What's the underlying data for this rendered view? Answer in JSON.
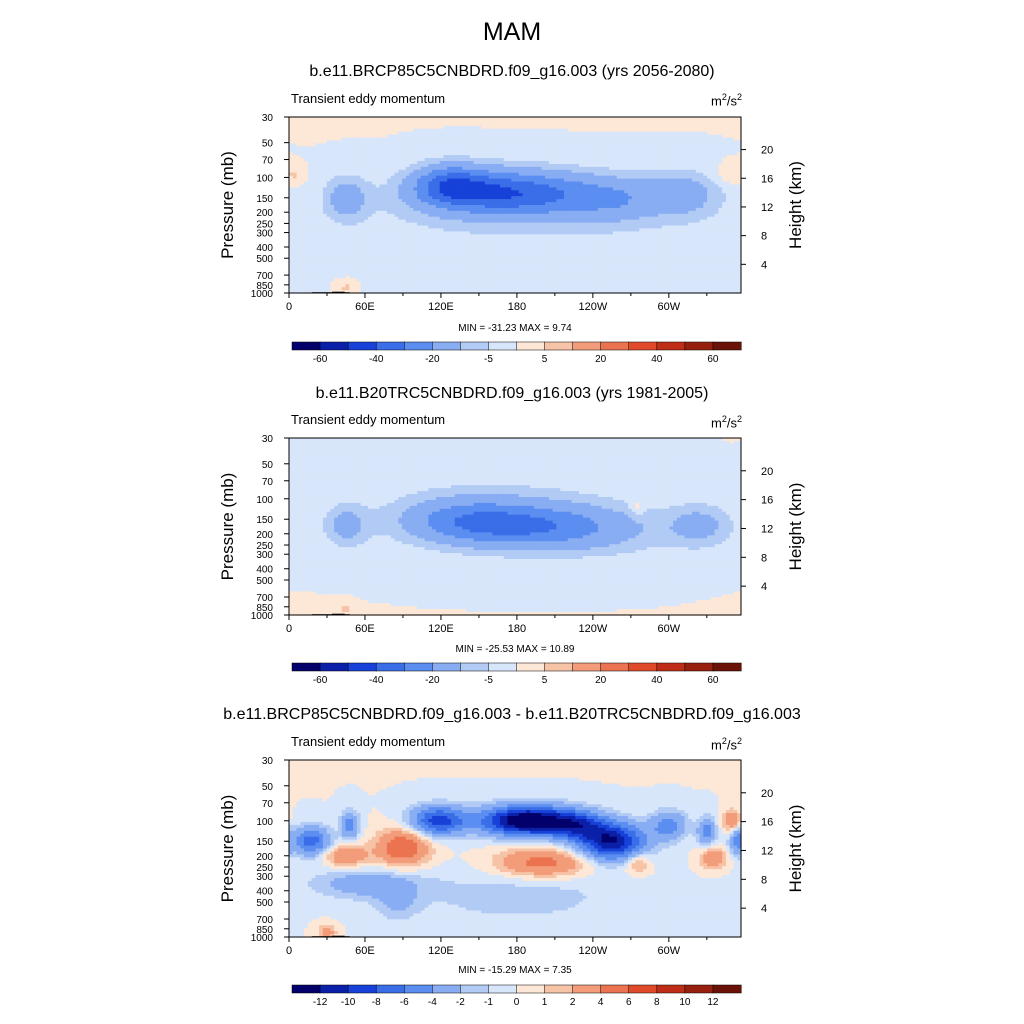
{
  "figure": {
    "title": "MAM",
    "colors": {
      "background": "#ffffff",
      "axis": "#000000",
      "topography": "#000000"
    }
  },
  "colorbars": {
    "full_field": {
      "labels": [
        "-60",
        "-40",
        "-20",
        "-5",
        "5",
        "20",
        "40",
        "60"
      ],
      "colors": [
        "#03006b",
        "#0a20a8",
        "#1741d8",
        "#3a6ee8",
        "#5b8ef0",
        "#89adf3",
        "#b1cbf5",
        "#d8e6fb",
        "#fde7d6",
        "#f7c3a7",
        "#f29c7a",
        "#ec7350",
        "#e04a2a",
        "#c02d16",
        "#96200d",
        "#6a1207"
      ]
    },
    "difference": {
      "labels": [
        "-12",
        "-10",
        "-8",
        "-6",
        "-4",
        "-2",
        "-1",
        "0",
        "1",
        "2",
        "4",
        "6",
        "8",
        "10",
        "12"
      ],
      "colors": [
        "#03006b",
        "#0a20a8",
        "#1741d8",
        "#3a6ee8",
        "#5b8ef0",
        "#89adf3",
        "#b1cbf5",
        "#d8e6fb",
        "#fde7d6",
        "#f7c3a7",
        "#f29c7a",
        "#ec7350",
        "#e04a2a",
        "#c02d16",
        "#96200d",
        "#6a1207"
      ]
    }
  },
  "panels": [
    {
      "title": "b.e11.BRCP85C5CNBDRD.f09_g16.003 (yrs 2056-2080)",
      "variable": "Transient eddy momentum",
      "units_base": "m",
      "units_exp1": "2",
      "units_mid": "/s",
      "units_exp2": "2",
      "minmax": "MIN = -31.23  MAX =   9.74",
      "ylabel_left": "Pressure (mb)",
      "ylabel_right": "Height (km)"
    },
    {
      "title": "b.e11.B20TRC5CNBDRD.f09_g16.003 (yrs 1981-2005)",
      "variable": "Transient eddy momentum",
      "units_base": "m",
      "units_exp1": "2",
      "units_mid": "/s",
      "units_exp2": "2",
      "minmax": "MIN = -25.53  MAX =  10.89",
      "ylabel_left": "Pressure (mb)",
      "ylabel_right": "Height (km)"
    },
    {
      "title": "b.e11.BRCP85C5CNBDRD.f09_g16.003 - b.e11.B20TRC5CNBDRD.f09_g16.003",
      "variable": "Transient eddy momentum",
      "units_base": "m",
      "units_exp1": "2",
      "units_mid": "/s",
      "units_exp2": "2",
      "minmax": "MIN = -15.29  MAX =   7.35",
      "ylabel_left": "Pressure (mb)",
      "ylabel_right": "Height (km)"
    }
  ],
  "chart_data": [
    {
      "type": "heatmap",
      "title": "b.e11.BRCP85C5CNBDRD.f09_g16.003 (yrs 2056-2080)",
      "variable": "Transient eddy momentum",
      "units": "m2/s2",
      "xlabel": "",
      "ylabel": "Pressure (mb)",
      "ylabel_right": "Height (km)",
      "x_ticks": [
        "0",
        "60E",
        "120E",
        "180",
        "120W",
        "60W"
      ],
      "x_tick_values": [
        0,
        60,
        120,
        180,
        240,
        300
      ],
      "xlim": [
        0,
        357
      ],
      "y_ticks": [
        30,
        50,
        70,
        100,
        150,
        200,
        250,
        300,
        400,
        500,
        700,
        850,
        1000
      ],
      "ylim": [
        1000,
        30
      ],
      "y_scale": "log",
      "height_ticks_km": [
        4,
        8,
        12,
        16,
        20
      ],
      "min": -31.23,
      "max": 9.74,
      "contour_levels": [
        -70,
        -60,
        -50,
        -40,
        -30,
        -20,
        -10,
        -5,
        0,
        5,
        10,
        20,
        30,
        40,
        50,
        60,
        70
      ],
      "features": [
        {
          "lon": 188,
          "p": 140,
          "value": -30,
          "sx": 55,
          "sy": 0.32
        },
        {
          "lon": 126,
          "p": 115,
          "value": -25,
          "sx": 20,
          "sy": 0.28
        },
        {
          "lon": 160,
          "p": 125,
          "value": -12,
          "sx": 30,
          "sy": 0.3
        },
        {
          "lon": 45,
          "p": 150,
          "value": -14,
          "sx": 12,
          "sy": 0.3
        },
        {
          "lon": 310,
          "p": 140,
          "value": -13,
          "sx": 22,
          "sy": 0.33
        },
        {
          "lon": 258,
          "p": 165,
          "value": -8,
          "sx": 20,
          "sy": 0.3
        },
        {
          "lon": 180,
          "p": 260,
          "value": -4,
          "sx": 120,
          "sy": 0.45
        },
        {
          "lon": 350,
          "p": 95,
          "value": 6,
          "sx": 8,
          "sy": 0.15
        },
        {
          "lon": 5,
          "p": 95,
          "value": 5,
          "sx": 5,
          "sy": 0.12
        },
        {
          "lon": 45,
          "p": 900,
          "value": 6,
          "sx": 4,
          "sy": 0.08
        }
      ]
    },
    {
      "type": "heatmap",
      "title": "b.e11.B20TRC5CNBDRD.f09_g16.003 (yrs 1981-2005)",
      "variable": "Transient eddy momentum",
      "units": "m2/s2",
      "xlabel": "",
      "ylabel": "Pressure (mb)",
      "ylabel_right": "Height (km)",
      "x_ticks": [
        "0",
        "60E",
        "120E",
        "180",
        "120W",
        "60W"
      ],
      "x_tick_values": [
        0,
        60,
        120,
        180,
        240,
        300
      ],
      "xlim": [
        0,
        357
      ],
      "y_ticks": [
        30,
        50,
        70,
        100,
        150,
        200,
        250,
        300,
        400,
        500,
        700,
        850,
        1000
      ],
      "ylim": [
        1000,
        30
      ],
      "y_scale": "log",
      "height_ticks_km": [
        4,
        8,
        12,
        16,
        20
      ],
      "min": -25.53,
      "max": 10.89,
      "contour_levels": [
        -70,
        -60,
        -50,
        -40,
        -30,
        -20,
        -10,
        -5,
        0,
        5,
        10,
        20,
        30,
        40,
        50,
        60,
        70
      ],
      "features": [
        {
          "lon": 195,
          "p": 175,
          "value": -24,
          "sx": 50,
          "sy": 0.3
        },
        {
          "lon": 140,
          "p": 150,
          "value": -16,
          "sx": 35,
          "sy": 0.3
        },
        {
          "lon": 45,
          "p": 170,
          "value": -12,
          "sx": 12,
          "sy": 0.3
        },
        {
          "lon": 325,
          "p": 170,
          "value": -12,
          "sx": 18,
          "sy": 0.3
        },
        {
          "lon": 170,
          "p": 130,
          "value": -6,
          "sx": 70,
          "sy": 0.55
        },
        {
          "lon": 260,
          "p": 220,
          "value": -3,
          "sx": 40,
          "sy": 0.4
        },
        {
          "lon": 275,
          "p": 120,
          "value": 6,
          "sx": 4,
          "sy": 0.12
        },
        {
          "lon": 45,
          "p": 900,
          "value": 8,
          "sx": 4,
          "sy": 0.08
        }
      ]
    },
    {
      "type": "heatmap",
      "title": "b.e11.BRCP85C5CNBDRD.f09_g16.003 - b.e11.B20TRC5CNBDRD.f09_g16.003",
      "variable": "Transient eddy momentum",
      "units": "m2/s2",
      "xlabel": "",
      "ylabel": "Pressure (mb)",
      "ylabel_right": "Height (km)",
      "x_ticks": [
        "0",
        "60E",
        "120E",
        "180",
        "120W",
        "60W"
      ],
      "x_tick_values": [
        0,
        60,
        120,
        180,
        240,
        300
      ],
      "xlim": [
        0,
        357
      ],
      "y_ticks": [
        30,
        50,
        70,
        100,
        150,
        200,
        250,
        300,
        400,
        500,
        700,
        850,
        1000
      ],
      "ylim": [
        1000,
        30
      ],
      "y_scale": "log",
      "height_ticks_km": [
        4,
        8,
        12,
        16,
        20
      ],
      "min": -15.29,
      "max": 7.35,
      "contour_levels": [
        -14,
        -12,
        -10,
        -8,
        -6,
        -4,
        -2,
        -1,
        0,
        1,
        2,
        4,
        6,
        8,
        10,
        12,
        14
      ],
      "features": [
        {
          "lon": 188,
          "p": 100,
          "value": -15,
          "sx": 25,
          "sy": 0.2
        },
        {
          "lon": 118,
          "p": 100,
          "value": -9,
          "sx": 15,
          "sy": 0.2
        },
        {
          "lon": 255,
          "p": 150,
          "value": -12,
          "sx": 18,
          "sy": 0.25
        },
        {
          "lon": 228,
          "p": 110,
          "value": -7,
          "sx": 15,
          "sy": 0.2
        },
        {
          "lon": 18,
          "p": 150,
          "value": -7,
          "sx": 10,
          "sy": 0.2
        },
        {
          "lon": 48,
          "p": 110,
          "value": -5,
          "sx": 5,
          "sy": 0.2
        },
        {
          "lon": 300,
          "p": 110,
          "value": -5,
          "sx": 10,
          "sy": 0.2
        },
        {
          "lon": 330,
          "p": 125,
          "value": -5,
          "sx": 5,
          "sy": 0.2
        },
        {
          "lon": 355,
          "p": 150,
          "value": -5,
          "sx": 5,
          "sy": 0.2
        },
        {
          "lon": 90,
          "p": 170,
          "value": 6,
          "sx": 14,
          "sy": 0.25
        },
        {
          "lon": 200,
          "p": 230,
          "value": 5,
          "sx": 25,
          "sy": 0.2
        },
        {
          "lon": 45,
          "p": 200,
          "value": 4,
          "sx": 12,
          "sy": 0.15
        },
        {
          "lon": 335,
          "p": 210,
          "value": 4,
          "sx": 7,
          "sy": 0.15
        },
        {
          "lon": 275,
          "p": 230,
          "value": 3,
          "sx": 7,
          "sy": 0.15
        },
        {
          "lon": 350,
          "p": 100,
          "value": 4,
          "sx": 5,
          "sy": 0.15
        },
        {
          "lon": 60,
          "p": 350,
          "value": -3,
          "sx": 30,
          "sy": 0.2
        },
        {
          "lon": 85,
          "p": 500,
          "value": -2,
          "sx": 12,
          "sy": 0.25
        },
        {
          "lon": 180,
          "p": 450,
          "value": -1.5,
          "sx": 60,
          "sy": 0.4
        },
        {
          "lon": 30,
          "p": 900,
          "value": 3,
          "sx": 5,
          "sy": 0.1
        }
      ]
    }
  ]
}
